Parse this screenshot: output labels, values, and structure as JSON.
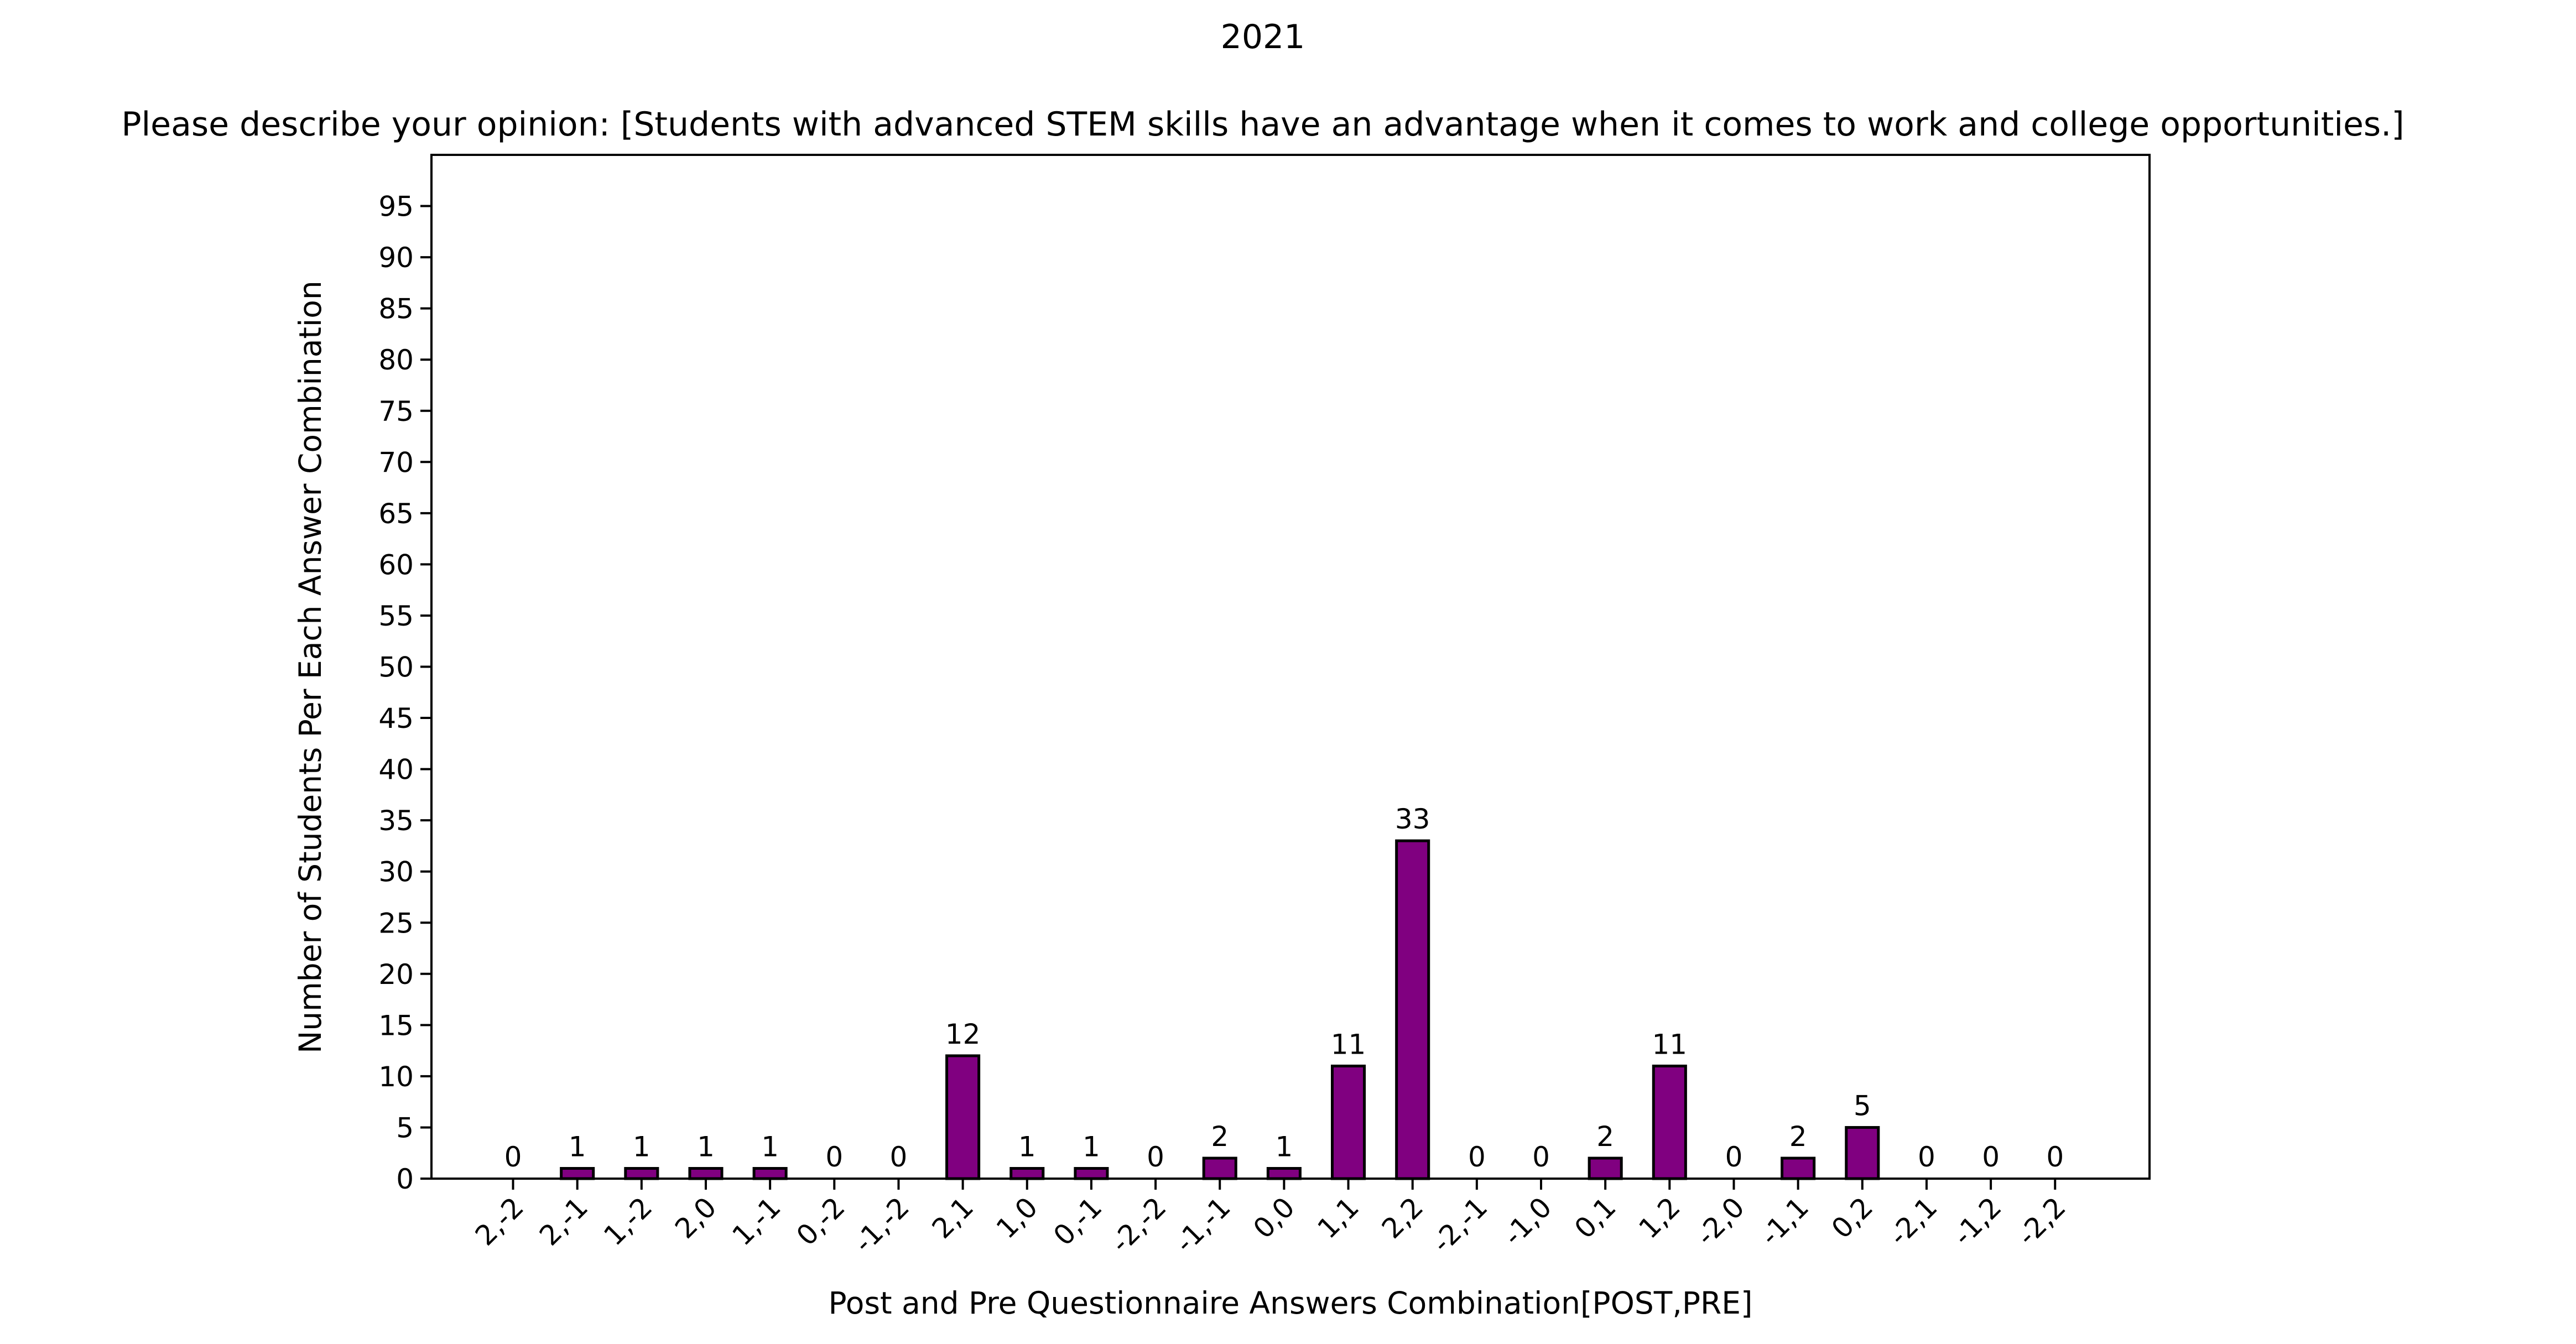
{
  "chart_data": {
    "type": "bar",
    "title": "2021",
    "subtitle": "Please describe your opinion: [Students with advanced STEM skills have an advantage when it comes to work and college opportunities.]",
    "xlabel": "Post and Pre Questionnaire Answers Combination[POST,PRE]",
    "ylabel": "Number of Students Per Each Answer Combination",
    "categories": [
      "2,-2",
      "2,-1",
      "1,-2",
      "2,0",
      "1,-1",
      "0,-2",
      "-1,-2",
      "2,1",
      "1,0",
      "0,-1",
      "-2,-2",
      "-1,-1",
      "0,0",
      "1,1",
      "2,2",
      "-2,-1",
      "-1,0",
      "0,1",
      "1,2",
      "-2,0",
      "-1,1",
      "0,2",
      "-2,1",
      "-1,2",
      "-2,2"
    ],
    "values": [
      0,
      1,
      1,
      1,
      1,
      0,
      0,
      12,
      1,
      1,
      0,
      2,
      1,
      11,
      33,
      0,
      0,
      2,
      11,
      0,
      2,
      5,
      0,
      0,
      0
    ],
    "data_labels": [
      "0",
      "1",
      "1",
      "1",
      "1",
      "0",
      "0",
      "12",
      "1",
      "1",
      "0",
      "2",
      "1",
      "11",
      "33",
      "0",
      "0",
      "2",
      "11",
      "0",
      "2",
      "5",
      "0",
      "0",
      "0"
    ],
    "ylim": [
      0,
      100
    ],
    "yticks": [
      0,
      5,
      10,
      15,
      20,
      25,
      30,
      35,
      40,
      45,
      50,
      55,
      60,
      65,
      70,
      75,
      80,
      85,
      90,
      95
    ],
    "ytick_labels": [
      "0",
      "5",
      "10",
      "15",
      "20",
      "25",
      "30",
      "35",
      "40",
      "45",
      "50",
      "55",
      "60",
      "65",
      "70",
      "75",
      "80",
      "85",
      "90",
      "95"
    ],
    "bar_color": "#800080",
    "edge_color": "#000000",
    "grid": false,
    "legend": false
  }
}
